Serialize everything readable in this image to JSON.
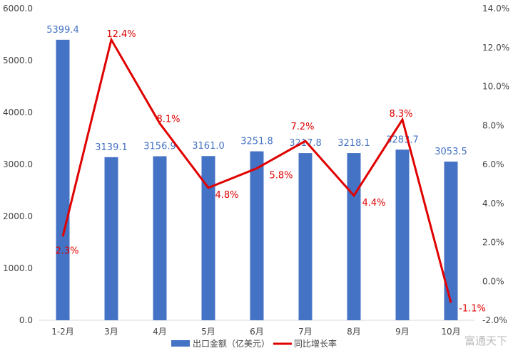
{
  "chart_data": {
    "type": "bar+line",
    "categories": [
      "1-2月",
      "3月",
      "4月",
      "5月",
      "6月",
      "7月",
      "8月",
      "9月",
      "10月"
    ],
    "series": [
      {
        "name": "出口金额（亿美元）",
        "type": "bar",
        "axis": "left",
        "color": "#4472C4",
        "values": [
          5399.4,
          3139.1,
          3156.9,
          3161.0,
          3251.8,
          3217.8,
          3218.1,
          3283.7,
          3053.5
        ],
        "labels": [
          "5399.4",
          "3139.1",
          "3156.9",
          "3161.0",
          "3251.8",
          "3217.8",
          "3218.1",
          "3283.7",
          "3053.5"
        ]
      },
      {
        "name": "同比增长率",
        "type": "line",
        "axis": "right",
        "color": "#E00000",
        "values": [
          2.3,
          12.4,
          8.1,
          4.8,
          5.8,
          7.2,
          4.4,
          8.3,
          -1.1
        ],
        "labels": [
          "2.3%",
          "12.4%",
          "8.1%",
          "4.8%",
          "5.8%",
          "7.2%",
          "4.4%",
          "8.3%",
          "-1.1%"
        ]
      }
    ],
    "y_left": {
      "range": [
        0,
        6000
      ],
      "ticks": [
        "0.0",
        "1000.0",
        "2000.0",
        "3000.0",
        "4000.0",
        "5000.0",
        "6000.0"
      ]
    },
    "y_right": {
      "range": [
        -2,
        14
      ],
      "ticks": [
        "-2.0%",
        "0.0%",
        "2.0%",
        "4.0%",
        "6.0%",
        "8.0%",
        "10.0%",
        "12.0%",
        "14.0%"
      ]
    },
    "grid": false,
    "legend_position": "bottom"
  },
  "watermark": "富通天下"
}
